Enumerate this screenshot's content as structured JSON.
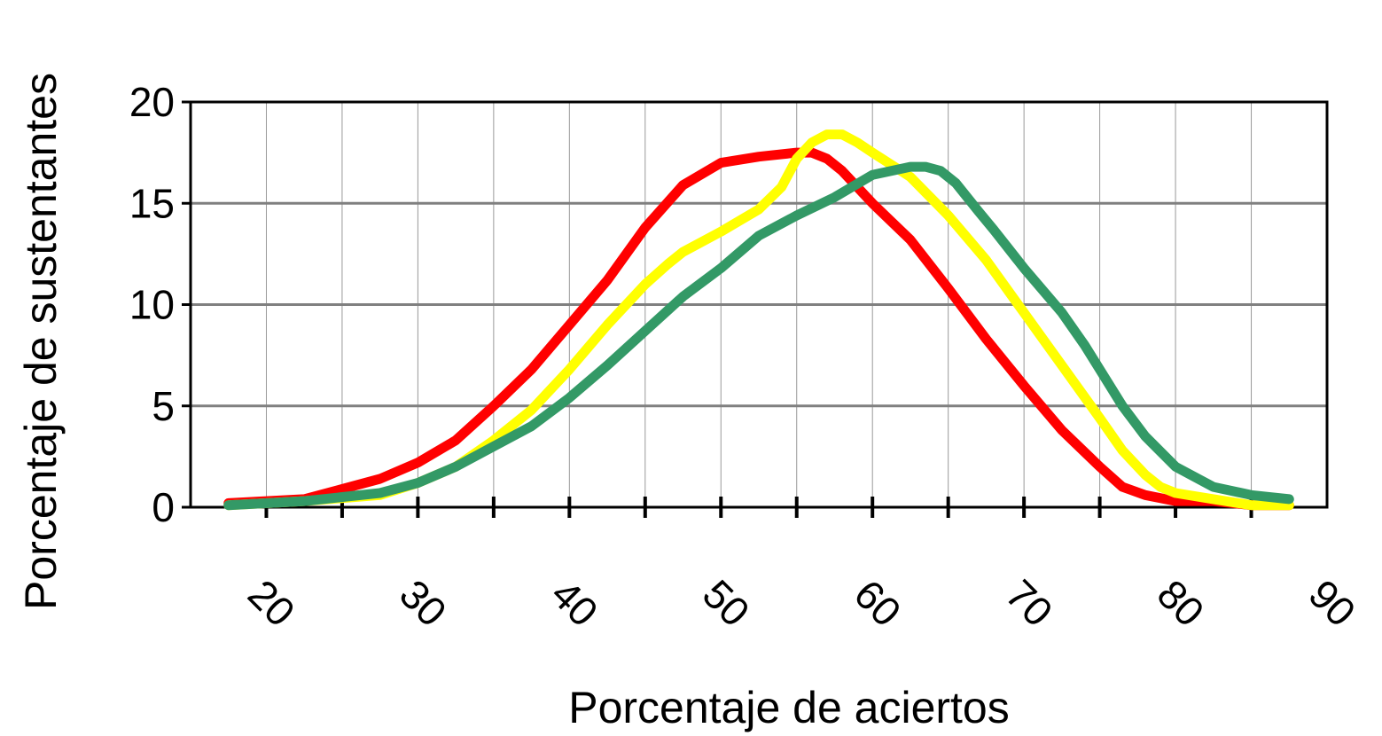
{
  "chart_data": {
    "type": "line",
    "title": "",
    "xlabel": "Porcentaje de aciertos",
    "ylabel": "Porcentaje de sustentantes",
    "xlim": [
      15,
      90
    ],
    "ylim": [
      0,
      20
    ],
    "x_ticks": [
      "20",
      "30",
      "40",
      "50",
      "60",
      "70",
      "80",
      "90"
    ],
    "y_ticks": [
      "0",
      "5",
      "10",
      "15",
      "20"
    ],
    "grid": {
      "vertical_minor": true,
      "horizontal_major": true
    },
    "legend": "none",
    "series": [
      {
        "color": "#ff0000",
        "points": [
          [
            17.5,
            0.2
          ],
          [
            22.5,
            0.4
          ],
          [
            27.5,
            1.4
          ],
          [
            30,
            2.2
          ],
          [
            32.5,
            3.3
          ],
          [
            35,
            5.0
          ],
          [
            37.5,
            6.8
          ],
          [
            40,
            9.0
          ],
          [
            42.5,
            11.2
          ],
          [
            45,
            13.8
          ],
          [
            47.5,
            15.9
          ],
          [
            50,
            17.0
          ],
          [
            52.5,
            17.3
          ],
          [
            55,
            17.5
          ],
          [
            56,
            17.5
          ],
          [
            57,
            17.2
          ],
          [
            58,
            16.6
          ],
          [
            60,
            15.0
          ],
          [
            62.5,
            13.2
          ],
          [
            65,
            10.8
          ],
          [
            67.5,
            8.3
          ],
          [
            70,
            6.0
          ],
          [
            72.5,
            3.8
          ],
          [
            75,
            2.0
          ],
          [
            76.5,
            1.0
          ],
          [
            78,
            0.6
          ],
          [
            80,
            0.3
          ],
          [
            82.5,
            0.3
          ],
          [
            85,
            0.1
          ],
          [
            87.5,
            0.1
          ]
        ]
      },
      {
        "color": "#ffff00",
        "points": [
          [
            17.5,
            0.1
          ],
          [
            22.5,
            0.3
          ],
          [
            27.5,
            0.6
          ],
          [
            30,
            1.2
          ],
          [
            32.5,
            2.0
          ],
          [
            35,
            3.3
          ],
          [
            37.5,
            4.8
          ],
          [
            40,
            6.8
          ],
          [
            42.5,
            9.0
          ],
          [
            45,
            11.0
          ],
          [
            46.5,
            12.0
          ],
          [
            47.5,
            12.6
          ],
          [
            50,
            13.6
          ],
          [
            52.5,
            14.7
          ],
          [
            54,
            15.8
          ],
          [
            55,
            17.2
          ],
          [
            56,
            18.0
          ],
          [
            57,
            18.4
          ],
          [
            58,
            18.4
          ],
          [
            59,
            18.0
          ],
          [
            60,
            17.5
          ],
          [
            62.5,
            16.3
          ],
          [
            65,
            14.4
          ],
          [
            67.5,
            12.2
          ],
          [
            70,
            9.6
          ],
          [
            72.5,
            7.0
          ],
          [
            75,
            4.4
          ],
          [
            76.5,
            2.8
          ],
          [
            78,
            1.6
          ],
          [
            79,
            1.0
          ],
          [
            80,
            0.7
          ],
          [
            82.5,
            0.4
          ],
          [
            85,
            0.1
          ],
          [
            87.5,
            0.1
          ]
        ]
      },
      {
        "color": "#339966",
        "points": [
          [
            17.5,
            0.1
          ],
          [
            22.5,
            0.3
          ],
          [
            27.5,
            0.7
          ],
          [
            30,
            1.2
          ],
          [
            32.5,
            2.0
          ],
          [
            35,
            3.0
          ],
          [
            37.5,
            4.0
          ],
          [
            40,
            5.4
          ],
          [
            42.5,
            7.0
          ],
          [
            45,
            8.7
          ],
          [
            47.5,
            10.4
          ],
          [
            50,
            11.8
          ],
          [
            52.5,
            13.4
          ],
          [
            55,
            14.4
          ],
          [
            57.5,
            15.3
          ],
          [
            60,
            16.4
          ],
          [
            62.5,
            16.8
          ],
          [
            63.5,
            16.8
          ],
          [
            64.5,
            16.6
          ],
          [
            65.5,
            16.0
          ],
          [
            67,
            14.6
          ],
          [
            68,
            13.7
          ],
          [
            70,
            11.8
          ],
          [
            72.5,
            9.6
          ],
          [
            74,
            8.0
          ],
          [
            75,
            6.8
          ],
          [
            76.5,
            5.0
          ],
          [
            78,
            3.5
          ],
          [
            80,
            2.0
          ],
          [
            82.5,
            1.0
          ],
          [
            85,
            0.6
          ],
          [
            87.5,
            0.4
          ]
        ]
      }
    ]
  }
}
